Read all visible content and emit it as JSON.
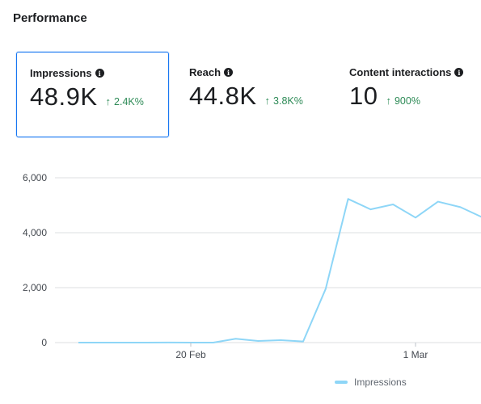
{
  "header": {
    "title": "Performance"
  },
  "metrics": [
    {
      "label": "Impressions",
      "value": "48.9K",
      "delta": "2.4K%",
      "selected": true
    },
    {
      "label": "Reach",
      "value": "44.8K",
      "delta": "3.8K%",
      "selected": false
    },
    {
      "label": "Content interactions",
      "value": "10",
      "delta": "900%",
      "selected": false
    }
  ],
  "icons": {
    "info": "info-icon",
    "up": "arrow-up-icon"
  },
  "colors": {
    "line": "#8ed6f7",
    "delta_positive": "#2e8b57",
    "selected_border": "#1877f2",
    "grid": "#dddfe2"
  },
  "chart_data": {
    "type": "line",
    "x_tick_labels": [
      "20 Feb",
      "1 Mar"
    ],
    "y_tick_labels": [
      "0",
      "2,000",
      "4,000",
      "6,000"
    ],
    "ylim": [
      0,
      6000
    ],
    "grid": true,
    "legend": "bottom-center",
    "series": [
      {
        "name": "Impressions",
        "values": [
          0,
          0,
          0,
          0,
          5,
          0,
          0,
          140,
          60,
          90,
          40,
          1950,
          5230,
          4850,
          5030,
          4550,
          5130,
          4930,
          4550
        ]
      }
    ]
  }
}
